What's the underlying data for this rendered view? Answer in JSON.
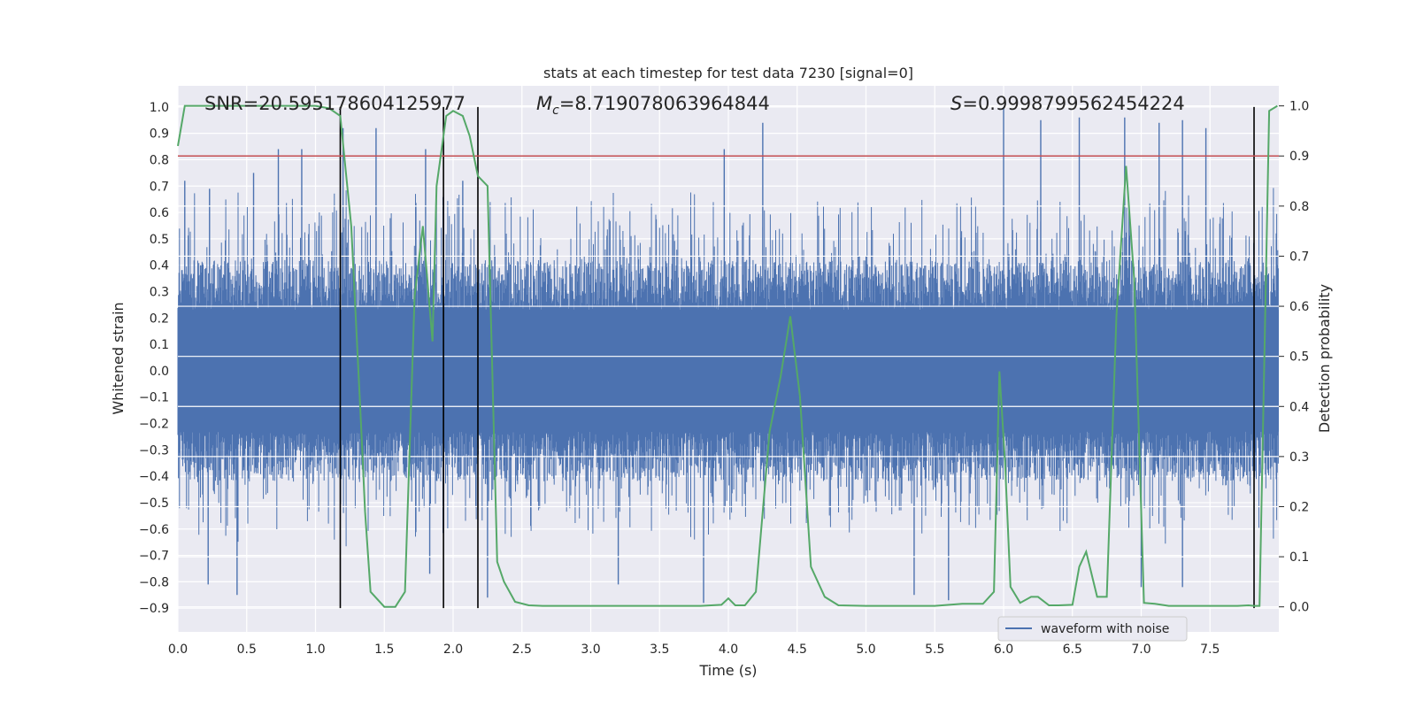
{
  "chart_data": {
    "type": "line",
    "title": "stats at each timestep for test data 7230 [signal=0]",
    "xlabel": "Time (s)",
    "ylabel_left": "Whitened strain",
    "ylabel_right": "Detection probability",
    "xlim": [
      0.0,
      8.0
    ],
    "ylim_left": [
      -0.99,
      1.08
    ],
    "ylim_right": [
      -0.05,
      1.04
    ],
    "x_ticks": [
      "0.0",
      "0.5",
      "1.0",
      "1.5",
      "2.0",
      "2.5",
      "3.0",
      "3.5",
      "4.0",
      "4.5",
      "5.0",
      "5.5",
      "6.0",
      "6.5",
      "7.0",
      "7.5"
    ],
    "y_ticks_left": [
      "1.0",
      "0.9",
      "0.8",
      "0.7",
      "0.6",
      "0.5",
      "0.4",
      "0.3",
      "0.2",
      "0.1",
      "0.0",
      "−0.1",
      "−0.2",
      "−0.3",
      "−0.4",
      "−0.5",
      "−0.6",
      "−0.7",
      "−0.8",
      "−0.9"
    ],
    "y_ticks_right": [
      "1.0",
      "0.9",
      "0.8",
      "0.7",
      "0.6",
      "0.5",
      "0.4",
      "0.3",
      "0.2",
      "0.1",
      "0.0"
    ],
    "annotations": {
      "snr": "SNR=20.595178604125977",
      "mc_symbol": "M",
      "mc_sub": "c",
      "mc_value": "=8.719078063964844",
      "s_symbol": "S",
      "s_value": "=0.9998799562454224"
    },
    "threshold": 0.9,
    "vertical_markers": [
      1.18,
      1.93,
      2.18,
      7.82
    ],
    "waveform": {
      "name": "waveform with noise",
      "color": "#4c72b0",
      "samples": 2048,
      "core_amplitude": 0.42,
      "peaks": [
        {
          "x": 0.05,
          "y": 0.72
        },
        {
          "x": 0.23,
          "y": 0.69
        },
        {
          "x": 0.55,
          "y": 0.75
        },
        {
          "x": 0.73,
          "y": 0.84
        },
        {
          "x": 0.9,
          "y": 0.84
        },
        {
          "x": 1.2,
          "y": 0.92
        },
        {
          "x": 1.44,
          "y": 0.92
        },
        {
          "x": 1.8,
          "y": 0.84
        },
        {
          "x": 2.07,
          "y": 0.72
        },
        {
          "x": 3.97,
          "y": 0.84
        },
        {
          "x": 4.25,
          "y": 0.94
        },
        {
          "x": 6.0,
          "y": 1.0
        },
        {
          "x": 6.27,
          "y": 0.95
        },
        {
          "x": 6.55,
          "y": 0.96
        },
        {
          "x": 6.88,
          "y": 0.96
        },
        {
          "x": 7.13,
          "y": 0.94
        },
        {
          "x": 7.3,
          "y": 0.95
        },
        {
          "x": 7.47,
          "y": 0.92
        },
        {
          "x": 0.22,
          "y": -0.81
        },
        {
          "x": 0.43,
          "y": -0.85
        },
        {
          "x": 1.83,
          "y": -0.77
        },
        {
          "x": 2.25,
          "y": -0.86
        },
        {
          "x": 3.2,
          "y": -0.81
        },
        {
          "x": 3.82,
          "y": -0.88
        },
        {
          "x": 5.35,
          "y": -0.85
        },
        {
          "x": 5.6,
          "y": -0.87
        },
        {
          "x": 7.0,
          "y": -0.82
        },
        {
          "x": 7.3,
          "y": -0.82
        }
      ]
    },
    "probability": {
      "color": "#55a868",
      "x": [
        0.0,
        0.05,
        0.1,
        0.2,
        0.4,
        0.6,
        0.8,
        1.0,
        1.1,
        1.18,
        1.26,
        1.33,
        1.36,
        1.4,
        1.5,
        1.58,
        1.65,
        1.72,
        1.78,
        1.85,
        1.88,
        1.95,
        2.0,
        2.07,
        2.12,
        2.18,
        2.25,
        2.32,
        2.37,
        2.45,
        2.55,
        2.65,
        2.8,
        3.0,
        3.3,
        3.5,
        3.8,
        3.95,
        4.0,
        4.05,
        4.12,
        4.2,
        4.3,
        4.38,
        4.45,
        4.52,
        4.6,
        4.7,
        4.8,
        5.0,
        5.5,
        5.7,
        5.85,
        5.93,
        5.97,
        6.01,
        6.05,
        6.12,
        6.2,
        6.25,
        6.33,
        6.4,
        6.5,
        6.55,
        6.6,
        6.68,
        6.75,
        6.82,
        6.89,
        6.95,
        7.02,
        7.1,
        7.2,
        7.3,
        7.5,
        7.7,
        7.78,
        7.82,
        7.86,
        7.93,
        7.99
      ],
      "y": [
        0.92,
        1.0,
        1.0,
        1.0,
        1.0,
        1.0,
        1.0,
        1.0,
        0.995,
        0.98,
        0.76,
        0.37,
        0.19,
        0.03,
        0.0,
        0.0,
        0.03,
        0.62,
        0.76,
        0.53,
        0.84,
        0.98,
        0.99,
        0.98,
        0.94,
        0.86,
        0.84,
        0.09,
        0.05,
        0.01,
        0.003,
        0.002,
        0.002,
        0.002,
        0.002,
        0.002,
        0.002,
        0.004,
        0.017,
        0.003,
        0.003,
        0.03,
        0.35,
        0.46,
        0.58,
        0.42,
        0.08,
        0.02,
        0.003,
        0.002,
        0.002,
        0.006,
        0.006,
        0.03,
        0.47,
        0.29,
        0.04,
        0.008,
        0.02,
        0.02,
        0.003,
        0.003,
        0.004,
        0.08,
        0.11,
        0.02,
        0.02,
        0.58,
        0.88,
        0.65,
        0.008,
        0.006,
        0.002,
        0.002,
        0.002,
        0.002,
        0.003,
        0.002,
        0.002,
        0.99,
        1.0
      ]
    },
    "legend": {
      "placement": "lower-right"
    },
    "grid": true,
    "colors": {
      "plot_background": "#eaeaf2",
      "grid": "#ffffff",
      "threshold": "#c44e52",
      "marker": "#000000"
    }
  }
}
